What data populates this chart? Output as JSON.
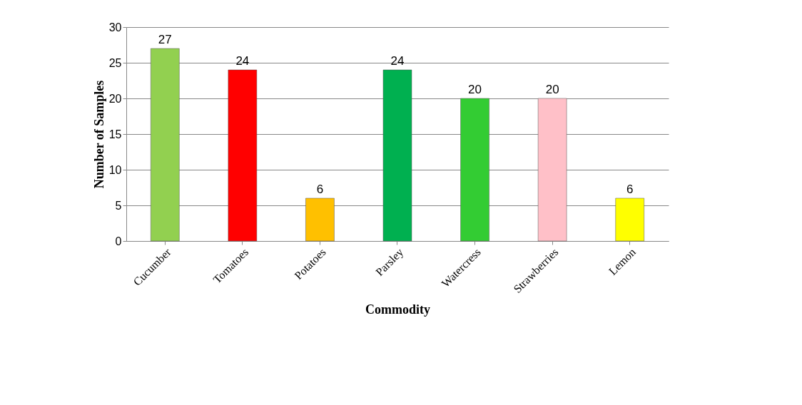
{
  "chart_data": {
    "type": "bar",
    "xlabel": "Commodity",
    "ylabel": "Number of Samples",
    "categories": [
      "Cucumber",
      "Tomatoes",
      "Potatoes",
      "Parsley",
      "Watercress",
      "Strawberries",
      "Lemon"
    ],
    "values": [
      27,
      24,
      6,
      24,
      20,
      20,
      6
    ],
    "colors": [
      "#92d050",
      "#ff0000",
      "#ffc000",
      "#00b050",
      "#33cc33",
      "#ffc0c8",
      "#ffff00"
    ],
    "ylim": [
      0,
      30
    ],
    "yticks": [
      0,
      5,
      10,
      15,
      20,
      25,
      30
    ],
    "grid": "y",
    "data_labels": true
  }
}
